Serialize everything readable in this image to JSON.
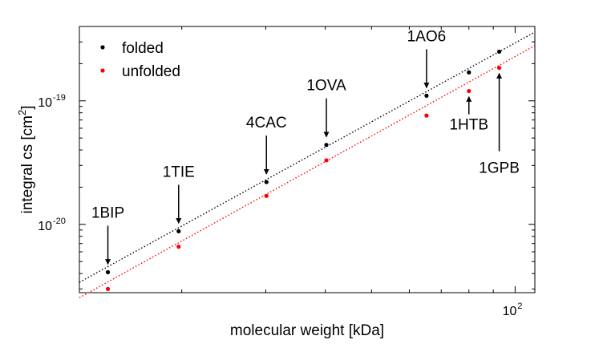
{
  "chart_data": {
    "type": "scatter",
    "xlabel": "molecular weight [kDa]",
    "ylabel": "integral cs [cm",
    "ylabel_sup": "2",
    "ylabel_end": "]",
    "x_scale": "log",
    "y_scale": "log",
    "xlim": [
      12.2,
      110
    ],
    "ylim": [
      2.8e-21,
      4e-19
    ],
    "x_tick_labels": [
      {
        "x": 100,
        "base": "10",
        "exp": "2"
      }
    ],
    "y_tick_labels": [
      {
        "y": 1e-20,
        "base": "10",
        "exp": "-20"
      },
      {
        "y": 1e-19,
        "base": "10",
        "exp": "-19"
      }
    ],
    "grid": false,
    "legend_position": "top-left",
    "series": [
      {
        "name": "folded",
        "color": "#000000",
        "points": [
          {
            "x": 14.0,
            "y": 4.1e-21
          },
          {
            "x": 19.7,
            "y": 8.8e-21
          },
          {
            "x": 30.1,
            "y": 2.2e-20
          },
          {
            "x": 40.2,
            "y": 4.4e-20
          },
          {
            "x": 65.2,
            "y": 1.1e-19
          },
          {
            "x": 80.0,
            "y": 1.7e-19
          },
          {
            "x": 92.6,
            "y": 2.5e-19
          }
        ],
        "fit": {
          "x": [
            12.2,
            110
          ],
          "y": [
            3.4e-21,
            3.6e-19
          ]
        }
      },
      {
        "name": "unfolded",
        "color": "#ff0000",
        "points": [
          {
            "x": 14.0,
            "y": 3e-21
          },
          {
            "x": 19.7,
            "y": 6.6e-21
          },
          {
            "x": 30.1,
            "y": 1.7e-20
          },
          {
            "x": 40.2,
            "y": 3.3e-20
          },
          {
            "x": 65.2,
            "y": 7.6e-20
          },
          {
            "x": 80.0,
            "y": 1.2e-19
          },
          {
            "x": 92.6,
            "y": 1.85e-19
          }
        ],
        "fit": {
          "x": [
            12.2,
            110
          ],
          "y": [
            2.55e-21,
            2.8e-19
          ]
        }
      }
    ],
    "annotations": [
      {
        "text": "1BIP",
        "x": 14.0,
        "y": 4.1e-21,
        "label_side": "above"
      },
      {
        "text": "1TIE",
        "x": 19.7,
        "y": 8.8e-21,
        "label_side": "above"
      },
      {
        "text": "4CAC",
        "x": 30.1,
        "y": 2.2e-20,
        "label_side": "above"
      },
      {
        "text": "1OVA",
        "x": 40.2,
        "y": 4.4e-20,
        "label_side": "above"
      },
      {
        "text": "1AO6",
        "x": 65.2,
        "y": 1.1e-19,
        "label_side": "above"
      },
      {
        "text": "1HTB",
        "x": 80.0,
        "y": 1.2e-19,
        "label_side": "below"
      },
      {
        "text": "1GPB",
        "x": 92.6,
        "y": 1.85e-19,
        "label_side": "below"
      }
    ]
  }
}
